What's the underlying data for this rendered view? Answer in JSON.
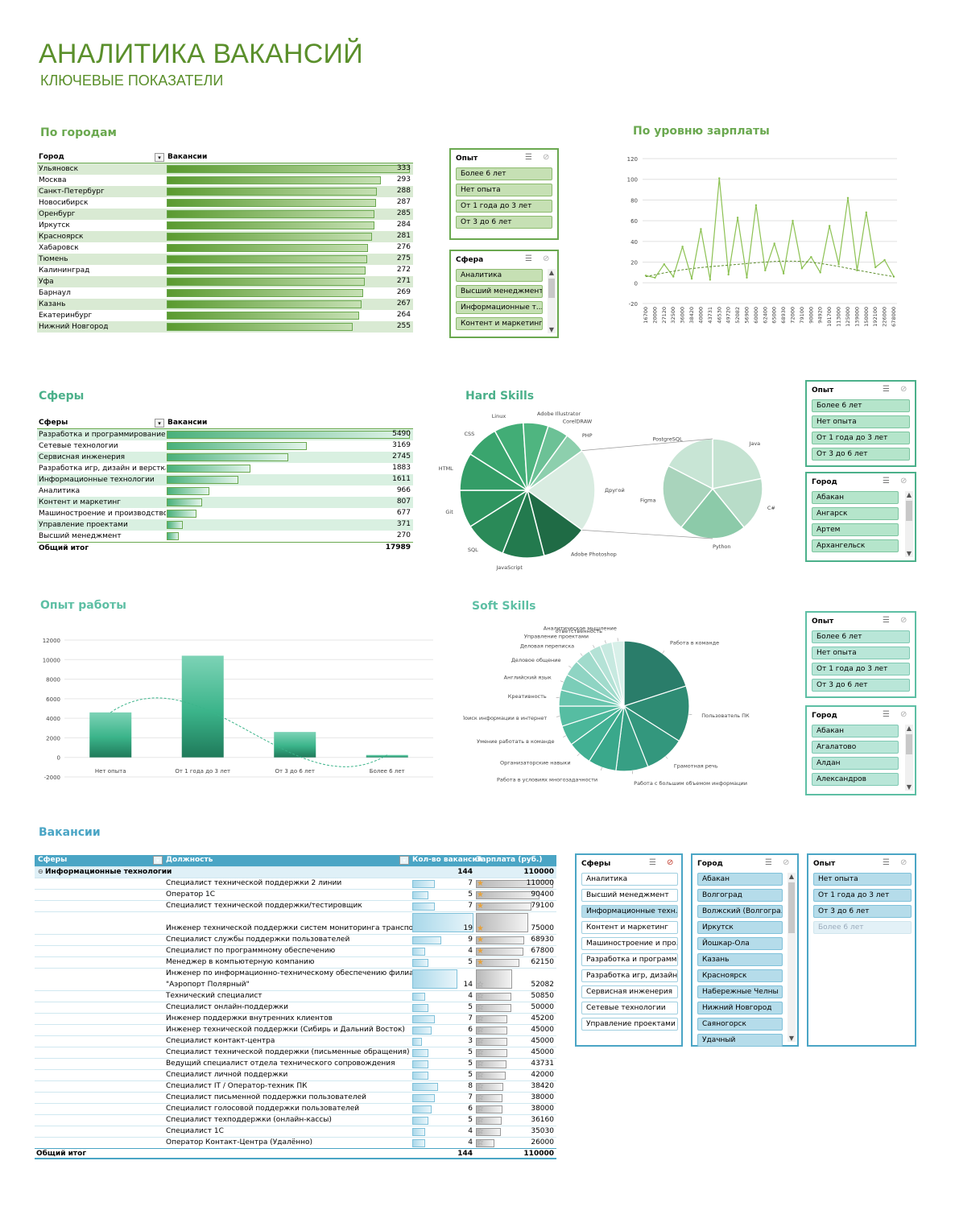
{
  "header": {
    "title": "АНАЛИТИКА ВАКАНСИЙ",
    "subtitle": "КЛЮЧЕВЫЕ ПОКАЗАТЕЛИ"
  },
  "colors": {
    "green": "#6aa84f",
    "teal": "#4bb0a0",
    "blue": "#4aa5c5"
  },
  "cities": {
    "title": "По городам",
    "col1": "Город",
    "col2": "Вакансии",
    "rows": [
      {
        "name": "Ульяновск",
        "value": 333
      },
      {
        "name": "Москва",
        "value": 293
      },
      {
        "name": "Санкт-Петербург",
        "value": 288
      },
      {
        "name": "Новосибирск",
        "value": 287
      },
      {
        "name": "Оренбург",
        "value": 285
      },
      {
        "name": "Иркутск",
        "value": 284
      },
      {
        "name": "Красноярск",
        "value": 281
      },
      {
        "name": "Хабаровск",
        "value": 276
      },
      {
        "name": "Тюмень",
        "value": 275
      },
      {
        "name": "Калининград",
        "value": 272
      },
      {
        "name": "Уфа",
        "value": 271
      },
      {
        "name": "Барнаул",
        "value": 269
      },
      {
        "name": "Казань",
        "value": 267
      },
      {
        "name": "Екатеринбург",
        "value": 264
      },
      {
        "name": "Нижний Новгород",
        "value": 255
      }
    ]
  },
  "spheres": {
    "title": "Сферы",
    "col1": "Сферы",
    "col2": "Вакансии",
    "rows": [
      {
        "name": "Разработка и программирование",
        "value": 5490
      },
      {
        "name": "Сетевые технологии",
        "value": 3169
      },
      {
        "name": "Сервисная инженерия",
        "value": 2745
      },
      {
        "name": "Разработка игр, дизайн и верстка",
        "value": 1883
      },
      {
        "name": "Информационные технологии",
        "value": 1611
      },
      {
        "name": "Аналитика",
        "value": 966
      },
      {
        "name": "Контент и маркетинг",
        "value": 807
      },
      {
        "name": "Машиностроение и производство",
        "value": 677
      },
      {
        "name": "Управление проектами",
        "value": 371
      },
      {
        "name": "Высший менеджмент",
        "value": 270
      }
    ],
    "total_label": "Общий итог",
    "total_value": 17989
  },
  "slicers": {
    "opyt1": {
      "title": "Опыт",
      "items": [
        "Более 6 лет",
        "Нет опыта",
        "От 1 года до 3 лет",
        "От 3 до 6 лет"
      ]
    },
    "sfera1": {
      "title": "Сфера",
      "items": [
        "Аналитика",
        "Высший менеджмент",
        "Информационные т...",
        "Контент и маркетинг"
      ]
    },
    "opyt2": {
      "title": "Опыт",
      "items": [
        "Более 6 лет",
        "Нет опыта",
        "От 1 года до 3 лет",
        "От 3 до 6 лет"
      ]
    },
    "gorod2": {
      "title": "Город",
      "items": [
        "Абакан",
        "Ангарск",
        "Артем",
        "Архангельск"
      ]
    },
    "opyt3": {
      "title": "Опыт",
      "items": [
        "Более 6 лет",
        "Нет опыта",
        "От 1 года до 3 лет",
        "От 3 до 6 лет"
      ]
    },
    "gorod3": {
      "title": "Город",
      "items": [
        "Абакан",
        "Агалатово",
        "Алдан",
        "Александров"
      ]
    },
    "sfery4": {
      "title": "Сферы",
      "items": [
        "Аналитика",
        "Высший менеджмент",
        "Информационные техн...",
        "Контент и маркетинг",
        "Машиностроение и про...",
        "Разработка и программ...",
        "Разработка игр, дизайн ...",
        "Сервисная инженерия",
        "Сетевые технологии",
        "Управление проектами"
      ]
    },
    "gorod4": {
      "title": "Город",
      "items": [
        "Абакан",
        "Волгоград",
        "Волжский (Волгогра...",
        "Иркутск",
        "Йошкар-Ола",
        "Казань",
        "Красноярск",
        "Набережные Челны",
        "Нижний Новгород",
        "Саяногорск",
        "Удачный"
      ]
    },
    "opyt4": {
      "title": "Опыт",
      "items": [
        "Нет опыта",
        "От 1 года до 3 лет",
        "От 3 до 6 лет",
        "Более 6 лет"
      ]
    }
  },
  "chart_data": [
    {
      "type": "line",
      "title": "По уровню зарплаты",
      "x": [
        "16700",
        "20000",
        "27120",
        "32500",
        "36000",
        "38420",
        "40000",
        "43731",
        "46530",
        "49720",
        "52082",
        "56900",
        "60000",
        "62400",
        "65000",
        "68930",
        "72000",
        "79100",
        "90000",
        "94920",
        "101700",
        "113000",
        "125000",
        "139000",
        "150000",
        "192100",
        "226000",
        "678000"
      ],
      "values": [
        7,
        5,
        18,
        6,
        35,
        4,
        52,
        3,
        101,
        8,
        63,
        5,
        75,
        12,
        38,
        9,
        60,
        14,
        25,
        10,
        55,
        18,
        82,
        12,
        68,
        15,
        22,
        6
      ],
      "trend": "polynomial",
      "ylim": [
        -20,
        120
      ],
      "yticks": [
        -20,
        0,
        20,
        40,
        60,
        80,
        100,
        120
      ]
    },
    {
      "type": "pie",
      "title": "Hard Skills",
      "labels": [
        "Adobe Photoshop",
        "JavaScript",
        "SQL",
        "Git",
        "HTML",
        "CSS",
        "Linux",
        "Adobe Illustrator",
        "CorelDRAW",
        "PHP",
        "Другой"
      ],
      "values": [
        11,
        10,
        10,
        9,
        9,
        8,
        7,
        6,
        5,
        5,
        20
      ],
      "secondary_labels": [
        "Java",
        "C#",
        "Python",
        "Figma",
        "PostgreSQL"
      ],
      "secondary_values": [
        5,
        4,
        5,
        5,
        4
      ]
    },
    {
      "type": "bar",
      "title": "Опыт работы",
      "categories": [
        "Нет опыта",
        "От 1 года до 3 лет",
        "От 3 до 6 лет",
        "Более 6 лет"
      ],
      "values": [
        4600,
        10400,
        2600,
        250
      ],
      "ylim": [
        -2000,
        12000
      ],
      "yticks": [
        -2000,
        0,
        2000,
        4000,
        6000,
        8000,
        10000,
        12000
      ]
    },
    {
      "type": "pie",
      "title": "Soft Skills",
      "labels": [
        "Работа в команде",
        "Пользователь ПК",
        "Грамотная речь",
        "Работа с большим объемом информации",
        "Работа в условиях многозадачности",
        "Организаторские навыки",
        "Умение работать в команде",
        "Поиск информации в интернет",
        "Креативность",
        "Английский язык",
        "Деловое общение",
        "Деловая переписка",
        "Управление проектами",
        "ответственность",
        "Аналитическое мышление"
      ],
      "values": [
        20,
        14,
        10,
        8,
        7,
        6,
        5,
        5,
        4,
        4,
        4,
        4,
        3,
        3,
        3
      ]
    }
  ],
  "vacancies": {
    "title": "Вакансии",
    "col_sphere": "Сферы",
    "col_position": "Должность",
    "col_count": "Кол-во вакансий",
    "col_salary": "Зарплата (руб.)",
    "group_label": "Информационные технологии",
    "group_count": "144",
    "group_salary": "110000",
    "rows": [
      {
        "name": "Специалист технической поддержки 2 линии",
        "count": 7,
        "salary": 110000
      },
      {
        "name": "Оператор 1С",
        "count": 5,
        "salary": 90400
      },
      {
        "name": "Специалист технической поддержки/тестировщик",
        "count": 7,
        "salary": 79100
      },
      {
        "name": "Инженер технической поддержки систем мониторинга транспорта",
        "count": 19,
        "salary": 75000
      },
      {
        "name": "Специалист службы поддержки пользователей",
        "count": 9,
        "salary": 68930
      },
      {
        "name": "Специалист по программному обеспечению",
        "count": 4,
        "salary": 67800
      },
      {
        "name": "Менеджер в компьютерную компанию",
        "count": 5,
        "salary": 62150
      },
      {
        "name": "Инженер по информационно-техническому обеспечению филиала",
        "name2": "\"Аэропорт Полярный\"",
        "count": 14,
        "salary": 52082
      },
      {
        "name": "Технический специалист",
        "count": 4,
        "salary": 50850
      },
      {
        "name": "Специалист онлайн-поддержки",
        "count": 5,
        "salary": 50000
      },
      {
        "name": "Инженер поддержки внутренних клиентов",
        "count": 7,
        "salary": 45200
      },
      {
        "name": "Инженер технической поддержки (Сибирь и Дальний Восток)",
        "count": 6,
        "salary": 45000
      },
      {
        "name": "Специалист контакт-центра",
        "count": 3,
        "salary": 45000
      },
      {
        "name": "Специалист технической поддержки (письменные обращения)",
        "count": 5,
        "salary": 45000
      },
      {
        "name": "Ведущий специалист отдела технического сопровождения",
        "count": 5,
        "salary": 43731
      },
      {
        "name": "Специалист личной поддержки",
        "count": 5,
        "salary": 42000
      },
      {
        "name": "Специалист IT / Оператор-техник ПК",
        "count": 8,
        "salary": 38420
      },
      {
        "name": "Специалист письменной поддержки пользователей",
        "count": 7,
        "salary": 38000
      },
      {
        "name": "Специалист голосовой поддержки пользователей",
        "count": 6,
        "salary": 38000
      },
      {
        "name": "Специалист техподдержки (онлайн-кассы)",
        "count": 5,
        "salary": 36160
      },
      {
        "name": "Специалист 1С",
        "count": 4,
        "salary": 35030
      },
      {
        "name": "Оператор Контакт-Центра (Удалённо)",
        "count": 4,
        "salary": 26000
      }
    ],
    "total_label": "Общий итог",
    "total_count": "144",
    "total_salary": "110000"
  }
}
